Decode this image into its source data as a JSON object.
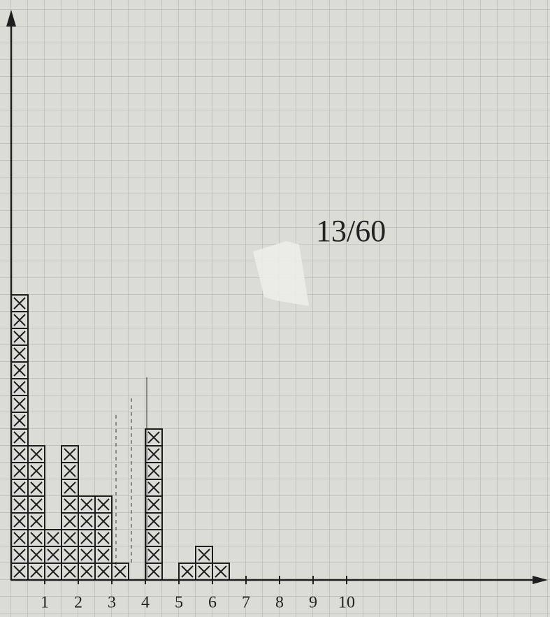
{
  "chart_data": {
    "type": "histogram",
    "annotation": "13/60",
    "bins": [
      0,
      0.5,
      1,
      1.5,
      2,
      2.5,
      3,
      3.5,
      4,
      4.5,
      5,
      5.5,
      6,
      6.5
    ],
    "values": [
      17,
      8,
      3,
      8,
      5,
      5,
      1,
      0,
      9,
      0,
      1,
      2,
      1
    ],
    "color": "#1e1e1e",
    "xlim": [
      0,
      16
    ],
    "ylim": [
      0,
      34
    ],
    "xticks": [
      1,
      2,
      3,
      4,
      5,
      6,
      7,
      8,
      9,
      10
    ]
  }
}
